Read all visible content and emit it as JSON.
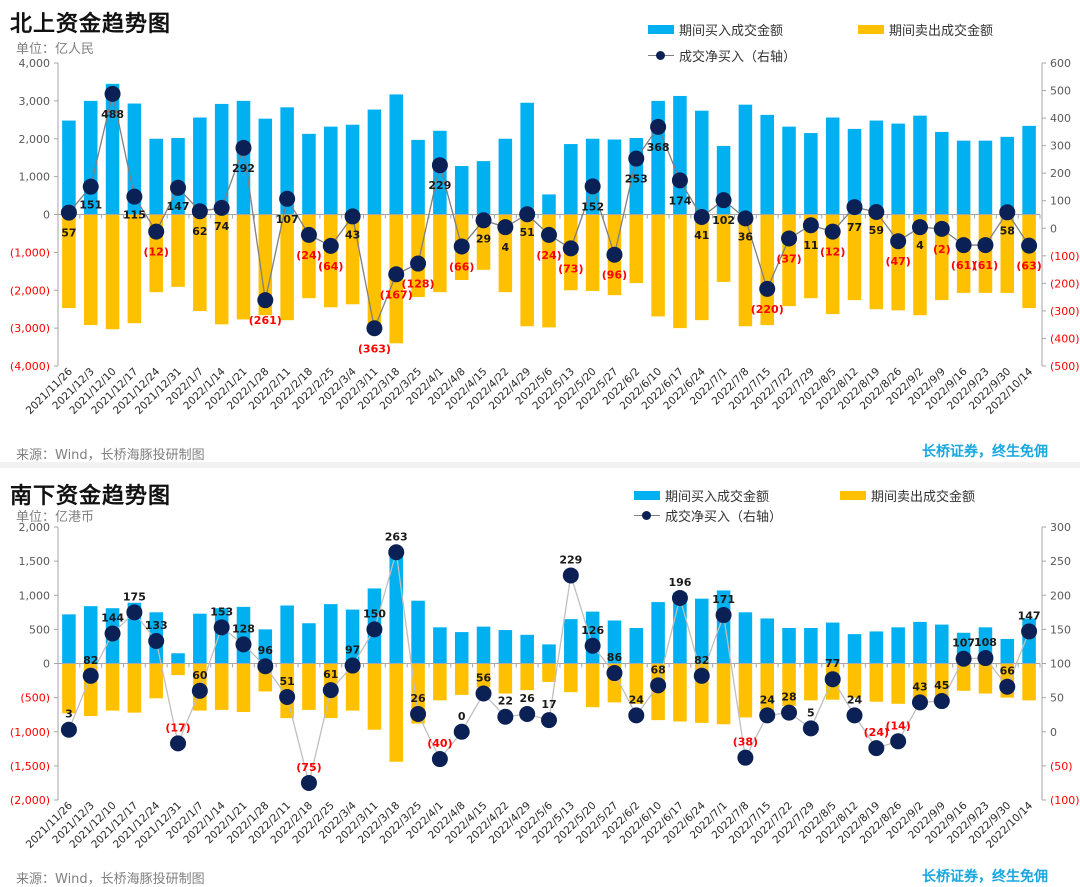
{
  "colors": {
    "buy": "#00b0f0",
    "sell": "#ffc000",
    "net_marker": "#0b2156",
    "net_line": "#8c8c8c",
    "negative": "#ff0000",
    "brand": "#19a7e0"
  },
  "charts": [
    {
      "title": "北上资金趋势图",
      "unit": "单位：亿人民",
      "legend": {
        "buy": "期间买入成交金额",
        "sell": "期间卖出成交金额",
        "net": "成交净买入（右轴）"
      },
      "source": "来源：Wind，长桥海豚投研制图",
      "brand": "长桥证券，终生免佣",
      "left_ticks": [
        "4,000",
        "3,000",
        "2,000",
        "1,000",
        "0",
        "(1,000)",
        "(2,000)",
        "(3,000)",
        "(4,000)"
      ],
      "right_ticks": [
        "600",
        "500",
        "400",
        "300",
        "200",
        "100",
        "0",
        "(100)",
        "(200)",
        "(300)",
        "(400)",
        "(500)"
      ]
    },
    {
      "title": "南下资金趋势图",
      "unit": "单位：亿港币",
      "legend": {
        "buy": "期间买入成交金额",
        "sell": "期间卖出成交金额",
        "net": "成交净买入（右轴）"
      },
      "source": "来源：Wind，长桥海豚投研制图",
      "brand": "长桥证券，终生免佣",
      "left_ticks": [
        "2,000",
        "1,500",
        "1,000",
        "500",
        "0",
        "(500)",
        "(1,000)",
        "(1,500)",
        "(2,000)"
      ],
      "right_ticks": [
        "300",
        "250",
        "200",
        "150",
        "100",
        "50",
        "0",
        "(50)",
        "(100)"
      ]
    }
  ],
  "chart_data": [
    {
      "type": "bar",
      "title": "北上资金趋势图",
      "ylabel": "单位：亿人民",
      "ylim": [
        -4000,
        4000
      ],
      "y2lim": [
        -500,
        600
      ],
      "legend": "top-right",
      "categories": [
        "2021/11/26",
        "2021/12/3",
        "2021/12/10",
        "2021/12/17",
        "2021/12/24",
        "2021/12/31",
        "2022/1/7",
        "2022/1/14",
        "2022/1/21",
        "2022/1/28",
        "2022/2/11",
        "2022/2/18",
        "2022/2/25",
        "2022/3/4",
        "2022/3/11",
        "2022/3/18",
        "2022/3/25",
        "2022/4/1",
        "2022/4/8",
        "2022/4/15",
        "2022/4/22",
        "2022/4/29",
        "2022/5/6",
        "2022/5/13",
        "2022/5/20",
        "2022/5/27",
        "2022/6/2",
        "2022/6/10",
        "2022/6/17",
        "2022/6/24",
        "2022/7/1",
        "2022/7/8",
        "2022/7/15",
        "2022/7/22",
        "2022/7/29",
        "2022/8/5",
        "2022/8/12",
        "2022/8/19",
        "2022/8/26",
        "2022/9/2",
        "2022/9/9",
        "2022/9/16",
        "2022/9/23",
        "2022/9/30",
        "2022/10/14"
      ],
      "series": [
        {
          "name": "期间买入成交金额",
          "axis": "left",
          "type": "bar",
          "values": [
            2480,
            3000,
            3450,
            2930,
            2000,
            2020,
            2560,
            2920,
            3000,
            2530,
            2830,
            2130,
            2320,
            2370,
            2770,
            3170,
            1970,
            2210,
            1280,
            1410,
            2000,
            2950,
            530,
            1860,
            2000,
            1980,
            2020,
            3000,
            3130,
            2740,
            1810,
            2900,
            2630,
            2320,
            2150,
            2560,
            2260,
            2480,
            2400,
            2610,
            2180,
            1950,
            1950,
            2050,
            2340
          ]
        },
        {
          "name": "期间卖出成交金额",
          "axis": "left",
          "type": "bar",
          "values": [
            -2470,
            -2920,
            -3030,
            -2870,
            -2050,
            -1910,
            -2550,
            -2900,
            -2770,
            -2660,
            -2790,
            -2210,
            -2450,
            -2370,
            -3110,
            -3400,
            -2180,
            -2050,
            -1730,
            -1460,
            -2050,
            -2950,
            -2980,
            -2000,
            -2020,
            -2130,
            -1810,
            -2690,
            -3000,
            -2790,
            -1780,
            -2950,
            -2920,
            -2420,
            -2210,
            -2630,
            -2260,
            -2500,
            -2530,
            -2660,
            -2260,
            -2070,
            -2070,
            -2070,
            -2470
          ]
        },
        {
          "name": "成交净买入（右轴）",
          "axis": "right",
          "type": "line",
          "values": [
            57,
            151,
            488,
            115,
            -12,
            147,
            62,
            74,
            292,
            -261,
            107,
            -24,
            -64,
            43,
            -363,
            -167,
            -128,
            229,
            -66,
            29,
            4,
            51,
            -24,
            -73,
            152,
            -96,
            253,
            368,
            174,
            41,
            102,
            36,
            -220,
            -37,
            11,
            -12,
            77,
            59,
            -47,
            4,
            -2,
            -61,
            -61,
            58,
            -63
          ]
        }
      ]
    },
    {
      "type": "bar",
      "title": "南下资金趋势图",
      "ylabel": "单位：亿港币",
      "ylim": [
        -2000,
        2000
      ],
      "y2lim": [
        -100,
        300
      ],
      "legend": "top-right",
      "categories": [
        "2021/11/26",
        "2021/12/3",
        "2021/12/10",
        "2021/12/17",
        "2021/12/24",
        "2021/12/31",
        "2022/1/7",
        "2022/1/14",
        "2022/1/21",
        "2022/1/28",
        "2022/2/11",
        "2022/2/18",
        "2022/2/25",
        "2022/3/4",
        "2022/3/11",
        "2022/3/18",
        "2022/3/25",
        "2022/4/1",
        "2022/4/8",
        "2022/4/15",
        "2022/4/22",
        "2022/4/29",
        "2022/5/6",
        "2022/5/13",
        "2022/5/20",
        "2022/5/27",
        "2022/6/2",
        "2022/6/10",
        "2022/6/17",
        "2022/6/24",
        "2022/7/1",
        "2022/7/8",
        "2022/7/15",
        "2022/7/22",
        "2022/7/29",
        "2022/8/5",
        "2022/8/12",
        "2022/8/19",
        "2022/8/26",
        "2022/9/2",
        "2022/9/9",
        "2022/9/16",
        "2022/9/23",
        "2022/9/30",
        "2022/10/14"
      ],
      "series": [
        {
          "name": "期间买入成交金额",
          "axis": "left",
          "type": "bar",
          "values": [
            720,
            840,
            810,
            890,
            750,
            150,
            730,
            810,
            830,
            500,
            850,
            590,
            870,
            790,
            1100,
            1690,
            920,
            530,
            460,
            540,
            490,
            420,
            280,
            650,
            760,
            630,
            520,
            900,
            1040,
            950,
            1070,
            750,
            660,
            520,
            520,
            600,
            430,
            470,
            530,
            610,
            570,
            450,
            530,
            360,
            660
          ]
        },
        {
          "name": "期间卖出成交金额",
          "axis": "left",
          "type": "bar",
          "values": [
            -730,
            -770,
            -690,
            -720,
            -510,
            -170,
            -690,
            -680,
            -710,
            -410,
            -800,
            -680,
            -800,
            -690,
            -970,
            -1440,
            -880,
            -540,
            -460,
            -350,
            -440,
            -390,
            -270,
            -420,
            -640,
            -570,
            -590,
            -830,
            -850,
            -870,
            -890,
            -790,
            -700,
            -620,
            -540,
            -530,
            -500,
            -560,
            -590,
            -620,
            -550,
            -400,
            -440,
            -500,
            -540
          ]
        },
        {
          "name": "成交净买入（右轴）",
          "axis": "right",
          "type": "line",
          "values": [
            3,
            82,
            144,
            175,
            133,
            -17,
            60,
            153,
            128,
            96,
            51,
            -75,
            61,
            97,
            150,
            263,
            26,
            -40,
            0,
            56,
            22,
            26,
            17,
            229,
            126,
            86,
            24,
            68,
            196,
            82,
            171,
            -38,
            24,
            28,
            5,
            77,
            24,
            -24,
            -14,
            43,
            45,
            107,
            108,
            66,
            147
          ]
        }
      ]
    }
  ]
}
